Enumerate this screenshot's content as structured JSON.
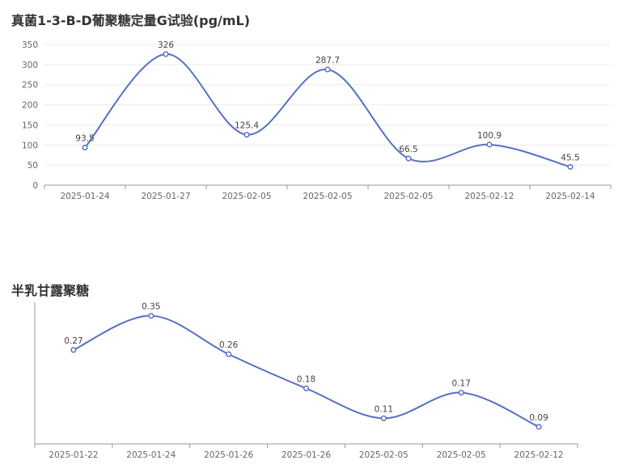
{
  "colors": {
    "series": "#5470c6",
    "grid": "#ebebeb",
    "axis": "#666666"
  },
  "chart_data": [
    {
      "type": "line",
      "title": "真菌1-3-B-D葡聚糖定量G试验(pg/mL)",
      "categories": [
        "2025-01-24",
        "2025-01-27",
        "2025-02-05",
        "2025-02-05",
        "2025-02-05",
        "2025-02-12",
        "2025-02-14"
      ],
      "series": [
        {
          "values": [
            93.5,
            326,
            125.4,
            287.7,
            66.5,
            100.9,
            45.5
          ]
        }
      ],
      "ylim": [
        0,
        350
      ],
      "yticks": [
        0,
        50,
        100,
        150,
        200,
        250,
        300,
        350
      ],
      "grid": true,
      "smooth": true
    },
    {
      "type": "line",
      "title": "半乳甘露聚糖",
      "categories": [
        "2025-01-22",
        "2025-01-24",
        "2025-01-26",
        "2025-01-26",
        "2025-02-05",
        "2025-02-05",
        "2025-02-12"
      ],
      "series": [
        {
          "values": [
            0.27,
            0.35,
            0.26,
            0.18,
            0.11,
            0.17,
            0.09
          ]
        }
      ],
      "ylim": [
        0.05,
        0.37
      ],
      "grid": false,
      "smooth": true
    }
  ]
}
